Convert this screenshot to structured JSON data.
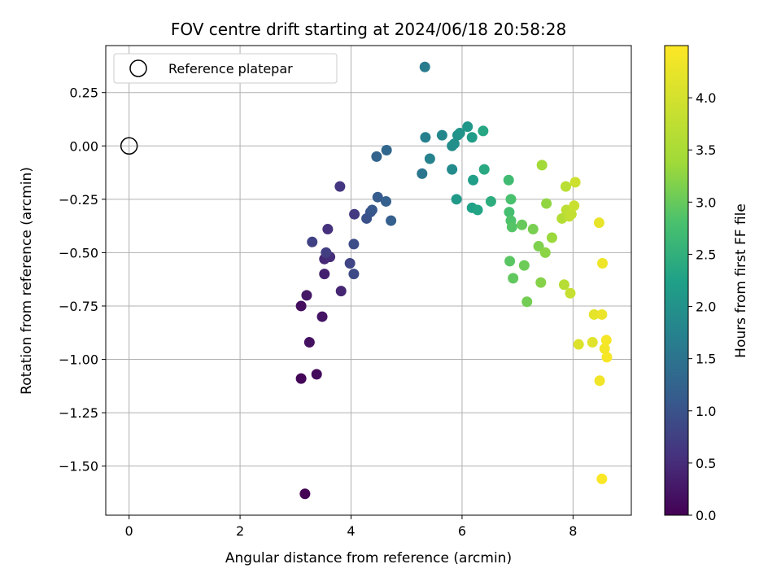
{
  "chart_data": {
    "type": "scatter",
    "title": "FOV centre drift starting at 2024/06/18 20:58:28",
    "xlabel": "Angular distance from reference (arcmin)",
    "ylabel": "Rotation from reference (arcmin)",
    "xlim": [
      -0.42,
      9.05
    ],
    "ylim": [
      -1.73,
      0.47
    ],
    "xticks": [
      0,
      2,
      4,
      6,
      8
    ],
    "yticks": [
      -1.5,
      -1.25,
      -1.0,
      -0.75,
      -0.5,
      -0.25,
      0.0,
      0.25
    ],
    "xtick_labels": [
      "0",
      "2",
      "4",
      "6",
      "8"
    ],
    "ytick_labels": [
      "−1.50",
      "−1.25",
      "−1.00",
      "−0.75",
      "−0.50",
      "−0.25",
      "0.00",
      "0.25"
    ],
    "grid": true,
    "legend": {
      "position": "top-left",
      "entries": [
        "Reference platepar"
      ]
    },
    "reference_point": {
      "x": 0,
      "y": 0
    },
    "colorbar": {
      "label": "Hours from first FF file",
      "colormap": "viridis",
      "range": [
        0.0,
        4.5
      ],
      "ticks": [
        0.0,
        0.5,
        1.0,
        1.5,
        2.0,
        2.5,
        3.0,
        3.5,
        4.0
      ],
      "tick_labels": [
        "0.0",
        "0.5",
        "1.0",
        "1.5",
        "2.0",
        "2.5",
        "3.0",
        "3.5",
        "4.0"
      ]
    },
    "points": [
      {
        "x": 3.17,
        "y": -1.63,
        "c": 0.02
      },
      {
        "x": 3.1,
        "y": -1.09,
        "c": 0.06
      },
      {
        "x": 3.38,
        "y": -1.07,
        "c": 0.1
      },
      {
        "x": 3.1,
        "y": -0.75,
        "c": 0.14
      },
      {
        "x": 3.25,
        "y": -0.92,
        "c": 0.18
      },
      {
        "x": 3.48,
        "y": -0.8,
        "c": 0.22
      },
      {
        "x": 3.2,
        "y": -0.7,
        "c": 0.26
      },
      {
        "x": 3.52,
        "y": -0.6,
        "c": 0.36
      },
      {
        "x": 3.82,
        "y": -0.68,
        "c": 0.42
      },
      {
        "x": 3.52,
        "y": -0.53,
        "c": 0.46
      },
      {
        "x": 3.62,
        "y": -0.52,
        "c": 0.5
      },
      {
        "x": 3.58,
        "y": -0.39,
        "c": 0.55
      },
      {
        "x": 3.8,
        "y": -0.19,
        "c": 0.62
      },
      {
        "x": 4.06,
        "y": -0.32,
        "c": 0.66
      },
      {
        "x": 3.55,
        "y": -0.5,
        "c": 0.72
      },
      {
        "x": 3.3,
        "y": -0.45,
        "c": 0.76
      },
      {
        "x": 3.98,
        "y": -0.55,
        "c": 0.82
      },
      {
        "x": 4.05,
        "y": -0.6,
        "c": 0.88
      },
      {
        "x": 4.05,
        "y": -0.46,
        "c": 0.92
      },
      {
        "x": 4.28,
        "y": -0.34,
        "c": 0.98
      },
      {
        "x": 4.35,
        "y": -0.31,
        "c": 1.02
      },
      {
        "x": 4.38,
        "y": -0.3,
        "c": 1.07
      },
      {
        "x": 4.48,
        "y": -0.24,
        "c": 1.12
      },
      {
        "x": 4.72,
        "y": -0.35,
        "c": 1.17
      },
      {
        "x": 4.63,
        "y": -0.26,
        "c": 1.2
      },
      {
        "x": 4.46,
        "y": -0.05,
        "c": 1.25
      },
      {
        "x": 4.64,
        "y": -0.02,
        "c": 1.3
      },
      {
        "x": 5.28,
        "y": -0.13,
        "c": 1.55
      },
      {
        "x": 5.33,
        "y": 0.37,
        "c": 1.62
      },
      {
        "x": 5.34,
        "y": 0.04,
        "c": 1.68
      },
      {
        "x": 5.42,
        "y": -0.06,
        "c": 1.75
      },
      {
        "x": 5.64,
        "y": 0.05,
        "c": 1.82
      },
      {
        "x": 5.82,
        "y": -0.11,
        "c": 1.88
      },
      {
        "x": 5.82,
        "y": 0.0,
        "c": 1.92
      },
      {
        "x": 5.86,
        "y": 0.01,
        "c": 1.96
      },
      {
        "x": 5.92,
        "y": 0.05,
        "c": 2.0
      },
      {
        "x": 5.96,
        "y": 0.06,
        "c": 2.04
      },
      {
        "x": 6.1,
        "y": 0.09,
        "c": 2.08
      },
      {
        "x": 5.9,
        "y": -0.25,
        "c": 2.12
      },
      {
        "x": 6.18,
        "y": 0.04,
        "c": 2.16
      },
      {
        "x": 6.2,
        "y": -0.16,
        "c": 2.2
      },
      {
        "x": 6.18,
        "y": -0.29,
        "c": 2.25
      },
      {
        "x": 6.28,
        "y": -0.3,
        "c": 2.3
      },
      {
        "x": 6.38,
        "y": 0.07,
        "c": 2.34
      },
      {
        "x": 6.4,
        "y": -0.11,
        "c": 2.38
      },
      {
        "x": 6.52,
        "y": -0.26,
        "c": 2.45
      },
      {
        "x": 6.84,
        "y": -0.16,
        "c": 2.7
      },
      {
        "x": 6.85,
        "y": -0.31,
        "c": 2.76
      },
      {
        "x": 6.88,
        "y": -0.25,
        "c": 2.8
      },
      {
        "x": 6.88,
        "y": -0.35,
        "c": 2.84
      },
      {
        "x": 6.9,
        "y": -0.38,
        "c": 2.88
      },
      {
        "x": 6.86,
        "y": -0.54,
        "c": 2.92
      },
      {
        "x": 6.92,
        "y": -0.62,
        "c": 2.96
      },
      {
        "x": 7.08,
        "y": -0.37,
        "c": 3.0
      },
      {
        "x": 7.12,
        "y": -0.56,
        "c": 3.04
      },
      {
        "x": 7.17,
        "y": -0.73,
        "c": 3.08
      },
      {
        "x": 7.28,
        "y": -0.39,
        "c": 3.12
      },
      {
        "x": 7.38,
        "y": -0.47,
        "c": 3.16
      },
      {
        "x": 7.42,
        "y": -0.64,
        "c": 3.2
      },
      {
        "x": 7.5,
        "y": -0.5,
        "c": 3.24
      },
      {
        "x": 7.52,
        "y": -0.27,
        "c": 3.28
      },
      {
        "x": 7.62,
        "y": -0.43,
        "c": 3.34
      },
      {
        "x": 7.44,
        "y": -0.09,
        "c": 3.4
      },
      {
        "x": 7.8,
        "y": -0.34,
        "c": 3.6
      },
      {
        "x": 7.84,
        "y": -0.65,
        "c": 3.64
      },
      {
        "x": 7.87,
        "y": -0.19,
        "c": 3.68
      },
      {
        "x": 7.88,
        "y": -0.3,
        "c": 3.72
      },
      {
        "x": 7.93,
        "y": -0.33,
        "c": 3.76
      },
      {
        "x": 7.97,
        "y": -0.32,
        "c": 3.8
      },
      {
        "x": 7.95,
        "y": -0.69,
        "c": 3.84
      },
      {
        "x": 8.02,
        "y": -0.28,
        "c": 3.88
      },
      {
        "x": 8.04,
        "y": -0.17,
        "c": 3.92
      },
      {
        "x": 8.1,
        "y": -0.93,
        "c": 4.1
      },
      {
        "x": 8.35,
        "y": -0.92,
        "c": 4.15
      },
      {
        "x": 8.38,
        "y": -0.79,
        "c": 4.2
      },
      {
        "x": 8.47,
        "y": -0.36,
        "c": 4.24
      },
      {
        "x": 8.52,
        "y": -0.79,
        "c": 4.28
      },
      {
        "x": 8.53,
        "y": -0.55,
        "c": 4.32
      },
      {
        "x": 8.48,
        "y": -1.1,
        "c": 4.36
      },
      {
        "x": 8.57,
        "y": -0.95,
        "c": 4.38
      },
      {
        "x": 8.6,
        "y": -0.91,
        "c": 4.4
      },
      {
        "x": 8.61,
        "y": -0.99,
        "c": 4.42
      },
      {
        "x": 8.52,
        "y": -1.56,
        "c": 4.46
      }
    ]
  }
}
